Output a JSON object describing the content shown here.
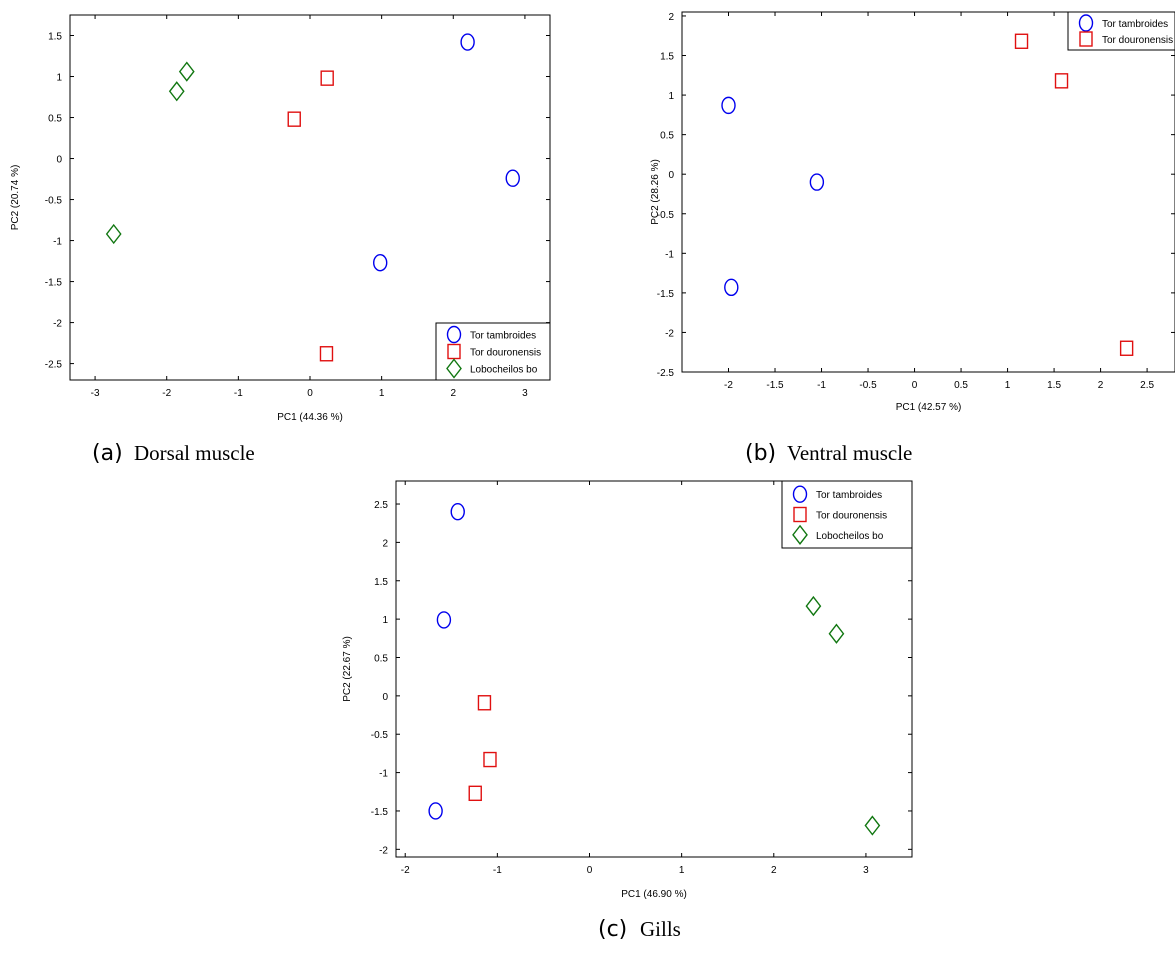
{
  "colors": {
    "Tor tambroides": "#0000ee",
    "Tor douronensis": "#e01010",
    "Lobocheilos bo": "#117711"
  },
  "markers": {
    "Tor tambroides": "circle",
    "Tor douronensis": "square",
    "Lobocheilos bo": "diamond"
  },
  "chart_data": [
    {
      "type": "scatter",
      "caption_letter": "(a)",
      "caption": "Dorsal muscle",
      "xlabel": "PC1 (44.36 %)",
      "ylabel": "PC2 (20.74 %)",
      "xlim": [
        -3.35,
        3.35
      ],
      "ylim": [
        -2.7,
        1.75
      ],
      "xticks": [
        -3,
        -2,
        -1,
        0,
        1,
        2,
        3
      ],
      "yticks": [
        -2.5,
        -2,
        -1.5,
        -1,
        -0.5,
        0,
        0.5,
        1,
        1.5
      ],
      "legend_position": "bottom-right",
      "series": [
        {
          "name": "Tor tambroides",
          "points": [
            [
              2.2,
              1.42
            ],
            [
              2.83,
              -0.24
            ],
            [
              0.98,
              -1.27
            ]
          ]
        },
        {
          "name": "Tor douronensis",
          "points": [
            [
              0.24,
              0.98
            ],
            [
              -0.22,
              0.48
            ],
            [
              0.23,
              -2.38
            ]
          ]
        },
        {
          "name": "Lobocheilos bo",
          "points": [
            [
              -1.72,
              1.06
            ],
            [
              -1.86,
              0.82
            ],
            [
              -2.74,
              -0.92
            ]
          ]
        }
      ]
    },
    {
      "type": "scatter",
      "caption_letter": "(b)",
      "caption": "Ventral muscle",
      "xlabel": "PC1 (42.57 %)",
      "ylabel": "PC2 (28.26 %)",
      "xlim": [
        -2.5,
        2.8
      ],
      "ylim": [
        -2.5,
        2.05
      ],
      "xticks": [
        -2,
        -1.5,
        -1,
        -0.5,
        0,
        0.5,
        1,
        1.5,
        2,
        2.5
      ],
      "yticks": [
        -2.5,
        -2,
        -1.5,
        -1,
        -0.5,
        0,
        0.5,
        1,
        1.5,
        2
      ],
      "legend_position": "top-right",
      "series": [
        {
          "name": "Tor tambroides",
          "points": [
            [
              -2.0,
              0.87
            ],
            [
              -1.05,
              -0.1
            ],
            [
              -1.97,
              -1.43
            ]
          ]
        },
        {
          "name": "Tor douronensis",
          "points": [
            [
              1.15,
              1.68
            ],
            [
              1.58,
              1.18
            ],
            [
              2.28,
              -2.2
            ]
          ]
        }
      ]
    },
    {
      "type": "scatter",
      "caption_letter": "(c)",
      "caption": "Gills",
      "xlabel": "PC1 (46.90 %)",
      "ylabel": "PC2 (22.67 %)",
      "xlim": [
        -2.1,
        3.5
      ],
      "ylim": [
        -2.1,
        2.8
      ],
      "xticks": [
        -2,
        -1,
        0,
        1,
        2,
        3
      ],
      "yticks": [
        -2,
        -1.5,
        -1,
        -0.5,
        0,
        0.5,
        1,
        1.5,
        2,
        2.5
      ],
      "legend_position": "top-right",
      "series": [
        {
          "name": "Tor tambroides",
          "points": [
            [
              -1.43,
              2.4
            ],
            [
              -1.58,
              0.99
            ],
            [
              -1.67,
              -1.5
            ]
          ]
        },
        {
          "name": "Tor douronensis",
          "points": [
            [
              -1.14,
              -0.09
            ],
            [
              -1.08,
              -0.83
            ],
            [
              -1.24,
              -1.27
            ]
          ]
        },
        {
          "name": "Lobocheilos bo",
          "points": [
            [
              2.43,
              1.17
            ],
            [
              2.68,
              0.81
            ],
            [
              3.07,
              -1.69
            ]
          ]
        }
      ]
    }
  ]
}
